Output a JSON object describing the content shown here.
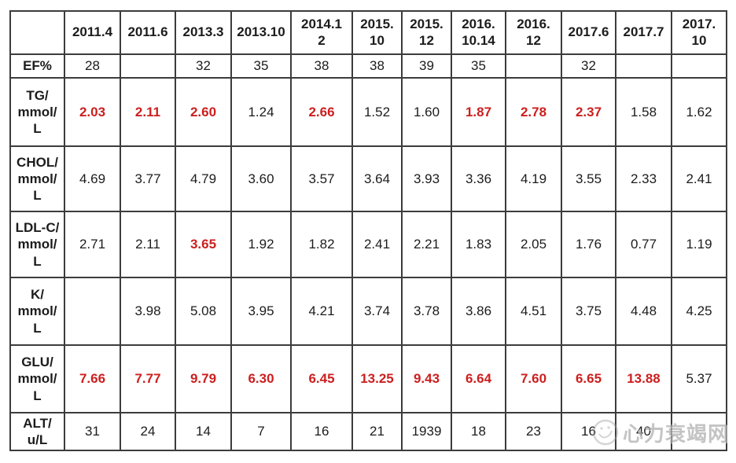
{
  "chart_data": {
    "type": "table",
    "title": "",
    "columns": [
      "",
      "2011.4",
      "2011.6",
      "2013.3",
      "2013.10",
      "2014.1\n2",
      "2015.\n10",
      "2015.\n12",
      "2016.\n10.14",
      "2016.\n12",
      "2017.6",
      "2017.7",
      "2017.\n10"
    ],
    "rows": [
      {
        "label": "EF%",
        "values": [
          "28",
          "",
          "32",
          "35",
          "38",
          "38",
          "39",
          "35",
          "",
          "32",
          "",
          ""
        ],
        "red": [
          false,
          false,
          false,
          false,
          false,
          false,
          false,
          false,
          false,
          false,
          false,
          false
        ]
      },
      {
        "label": "TG/\nmmol/\nL",
        "values": [
          "2.03",
          "2.11",
          "2.60",
          "1.24",
          "2.66",
          "1.52",
          "1.60",
          "1.87",
          "2.78",
          "2.37",
          "1.58",
          "1.62"
        ],
        "red": [
          true,
          true,
          true,
          false,
          true,
          false,
          false,
          true,
          true,
          true,
          false,
          false
        ]
      },
      {
        "label": "CHOL/\nmmol/\nL",
        "values": [
          "4.69",
          "3.77",
          "4.79",
          "3.60",
          "3.57",
          "3.64",
          "3.93",
          "3.36",
          "4.19",
          "3.55",
          "2.33",
          "2.41"
        ],
        "red": [
          false,
          false,
          false,
          false,
          false,
          false,
          false,
          false,
          false,
          false,
          false,
          false
        ]
      },
      {
        "label": "LDL-C/\nmmol/\nL",
        "values": [
          "2.71",
          "2.11",
          "3.65",
          "1.92",
          "1.82",
          "2.41",
          "2.21",
          "1.83",
          "2.05",
          "1.76",
          "0.77",
          "1.19"
        ],
        "red": [
          false,
          false,
          true,
          false,
          false,
          false,
          false,
          false,
          false,
          false,
          false,
          false
        ]
      },
      {
        "label": "K/\nmmol/\nL",
        "values": [
          "",
          "3.98",
          "5.08",
          "3.95",
          "4.21",
          "3.74",
          "3.78",
          "3.86",
          "4.51",
          "3.75",
          "4.48",
          "4.25"
        ],
        "red": [
          false,
          false,
          false,
          false,
          false,
          false,
          false,
          false,
          false,
          false,
          false,
          false
        ]
      },
      {
        "label": "GLU/\nmmol/\nL",
        "values": [
          "7.66",
          "7.77",
          "9.79",
          "6.30",
          "6.45",
          "13.25",
          "9.43",
          "6.64",
          "7.60",
          "6.65",
          "13.88",
          "5.37"
        ],
        "red": [
          true,
          true,
          true,
          true,
          true,
          true,
          true,
          true,
          true,
          true,
          true,
          false
        ]
      },
      {
        "label": "ALT/\nu/L",
        "values": [
          "31",
          "24",
          "14",
          "7",
          "16",
          "21",
          "1939",
          "18",
          "23",
          "16",
          "40",
          ""
        ],
        "red": [
          false,
          false,
          false,
          false,
          false,
          false,
          false,
          false,
          false,
          false,
          false,
          false
        ]
      }
    ]
  },
  "watermark": {
    "text": "心力衰竭网"
  },
  "colors": {
    "abnormal_red": "#cc1f1f",
    "text_black": "#1c1c1c",
    "border": "#3c3c3c"
  }
}
